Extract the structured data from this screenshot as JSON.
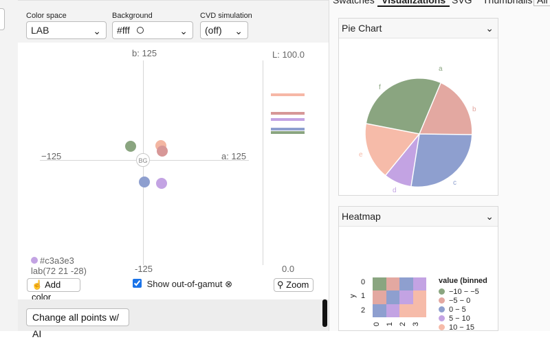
{
  "controls": {
    "color_space": {
      "label": "Color space",
      "value": "LAB"
    },
    "background": {
      "label": "Background",
      "value": "#fff"
    },
    "cvd": {
      "label": "CVD simulation",
      "value": "(off)"
    }
  },
  "plot": {
    "b_top": "b: 125",
    "b_bottom": "-125",
    "a_left": "−125",
    "a_right": "a: 125",
    "l_top": "L: 100.0",
    "l_bottom": "0.0",
    "bg_marker": "BG",
    "selected_hex": "#c3a3e3",
    "selected_lab": "lab(72 21 -28)",
    "points": [
      {
        "color": "#8aa580"
      },
      {
        "color": "#f3b6a2"
      },
      {
        "color": "#d79797"
      },
      {
        "color": "#8e9fcf"
      },
      {
        "color": "#c3a3e3"
      }
    ],
    "l_bars": [
      {
        "color": "#f6b7a6"
      },
      {
        "color": "#d79797"
      },
      {
        "color": "#c3a3e3"
      },
      {
        "color": "#8e9fcf"
      },
      {
        "color": "#8aa580"
      }
    ]
  },
  "buttons": {
    "add_color": "Add color",
    "show_out_of_gamut": "Show out-of-gamut ⊗",
    "zoom": "Zoom",
    "change_all": "Change all points w/ AI"
  },
  "tabs": [
    "Swatches",
    "Visualizations",
    "SVG",
    "Thumbnails",
    "All"
  ],
  "pie": {
    "title": "Pie Chart",
    "chart_data": {
      "type": "pie",
      "labels": [
        "a",
        "b",
        "c",
        "d",
        "e",
        "f"
      ],
      "colors": [
        "#e3a8a1",
        "#e3a8a1",
        "#8e9fcf",
        "#c3a3e3",
        "#f6bba9",
        "#8aa580"
      ]
    }
  },
  "heatmap": {
    "title": "Heatmap",
    "y_label": "y",
    "rows": [
      "0",
      "1",
      "2"
    ],
    "cols": [
      "0",
      "1",
      "2",
      "3"
    ],
    "legend_title": "value (binned",
    "legend": [
      {
        "label": "−10 − −5",
        "color": "#8aa580"
      },
      {
        "label": "−5 − 0",
        "color": "#e3a8a1"
      },
      {
        "label": "0 − 5",
        "color": "#8e9fcf"
      },
      {
        "label": "5 − 10",
        "color": "#c3a3e3"
      },
      {
        "label": "10 − 15",
        "color": "#f6bba9"
      }
    ],
    "cells": [
      [
        "#8aa580",
        "#e3a8a1",
        "#8e9fcf",
        "#c3a3e3"
      ],
      [
        "#e3a8a1",
        "#8e9fcf",
        "#c3a3e3",
        "#f6bba9"
      ],
      [
        "#8e9fcf",
        "#c3a3e3",
        "#f6bba9",
        "#f6bba9"
      ]
    ]
  }
}
